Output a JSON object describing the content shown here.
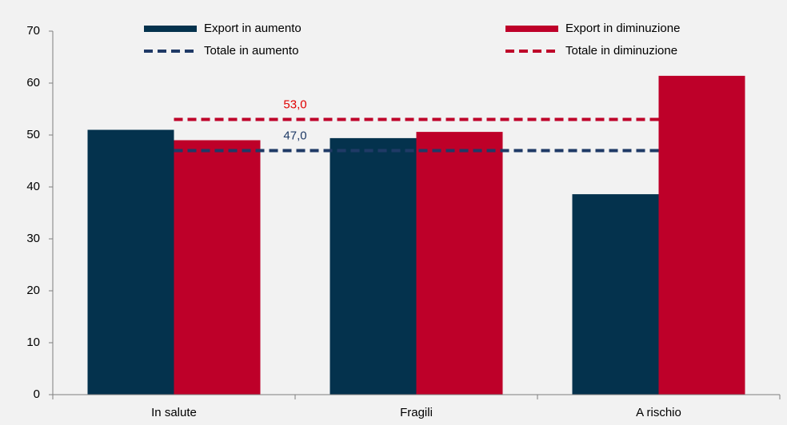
{
  "chart_data": {
    "type": "bar",
    "categories": [
      "In salute",
      "Fragili",
      "A rischio"
    ],
    "series": [
      {
        "name": "Export in aumento",
        "color": "#04324d",
        "values": [
          51,
          49.4,
          38.6
        ]
      },
      {
        "name": "Export in diminuzione",
        "color": "#be0029",
        "values": [
          49,
          50.6,
          61.4
        ]
      },
      {
        "name": "Totale in aumento",
        "type": "line",
        "color": "#1f3a66",
        "values": [
          47,
          47,
          47
        ],
        "value_label": "47,0",
        "label_color": "#1f3a66"
      },
      {
        "name": "Totale in diminuzione",
        "type": "line",
        "color": "#be0029",
        "values": [
          53,
          53,
          53
        ],
        "value_label": "53,0",
        "label_color": "#e00000"
      }
    ],
    "ylim": [
      0,
      70
    ],
    "yticks": [
      0,
      10,
      20,
      30,
      40,
      50,
      60,
      70
    ],
    "grid": false,
    "legend": "top"
  }
}
